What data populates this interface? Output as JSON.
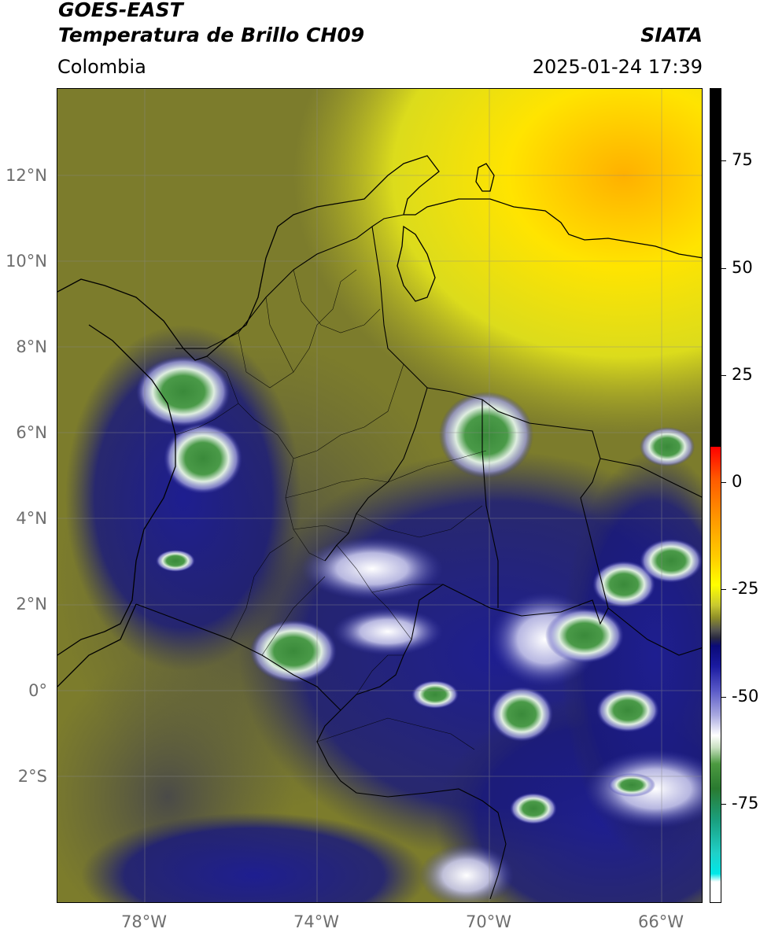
{
  "header": {
    "satellite": "GOES-EAST",
    "product": "Temperatura de Brillo CH09",
    "source": "SIATA",
    "region": "Colombia",
    "timestamp": "2025-01-24 17:39"
  },
  "map": {
    "lon_range": [
      -80.1,
      -64.9
    ],
    "lat_range": [
      -5.2,
      14.0
    ],
    "lat_ticks": [
      "12°N",
      "10°N",
      "8°N",
      "6°N",
      "4°N",
      "2°N",
      "0°",
      "2°S"
    ],
    "lon_ticks": [
      "78°W",
      "74°W",
      "70°W",
      "66°W"
    ],
    "colors": {
      "cold_cloud": "#1a1a8a",
      "dry_air": "#7a7a2a",
      "warm": "#e8e800",
      "convective_core": "#3a8a3a"
    }
  },
  "colorbar": {
    "range": [
      -100,
      90
    ],
    "tick_labels": [
      "75",
      "50",
      "25",
      "0",
      "-25",
      "-50",
      "-75"
    ]
  }
}
